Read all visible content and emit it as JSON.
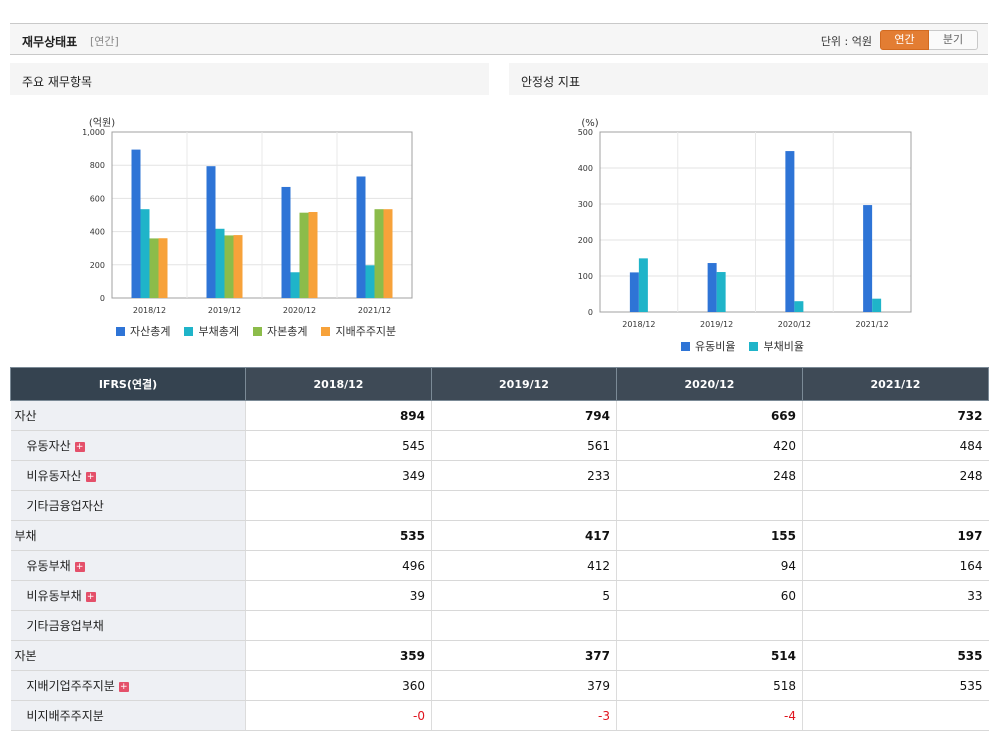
{
  "header": {
    "title": "재무상태표",
    "period": "[연간]",
    "unit_label": "단위 : 억원",
    "toggle": [
      "연간",
      "분기"
    ]
  },
  "left_panel": {
    "title": "주요 재무항목",
    "chart_data": {
      "type": "bar",
      "unit_label": "(억원)",
      "categories": [
        "2018/12",
        "2019/12",
        "2020/12",
        "2021/12"
      ],
      "ylim": [
        0,
        1000
      ],
      "yticks": [
        "0",
        "200",
        "400",
        "600",
        "800",
        "1,000"
      ],
      "ytick_values": [
        0,
        200,
        400,
        600,
        800,
        1000
      ],
      "series": [
        {
          "name": "자산총계",
          "color": "#2e74d6",
          "values": [
            894,
            794,
            669,
            732
          ]
        },
        {
          "name": "부채총계",
          "color": "#1fb4c9",
          "values": [
            535,
            417,
            155,
            197
          ]
        },
        {
          "name": "자본총계",
          "color": "#8cbc4a",
          "values": [
            359,
            377,
            514,
            535
          ]
        },
        {
          "name": "지배주주지분",
          "color": "#f7a23a",
          "values": [
            360,
            379,
            518,
            535
          ]
        }
      ]
    }
  },
  "right_panel": {
    "title": "안정성 지표",
    "chart_data": {
      "type": "bar",
      "unit_label": "(%)",
      "categories": [
        "2018/12",
        "2019/12",
        "2020/12",
        "2021/12"
      ],
      "ylim": [
        0,
        500
      ],
      "yticks": [
        "0",
        "100",
        "200",
        "300",
        "400",
        "500"
      ],
      "ytick_values": [
        0,
        100,
        200,
        300,
        400,
        500
      ],
      "series": [
        {
          "name": "유동비율",
          "color": "#2e74d6",
          "values": [
            110,
            136,
            447,
            297
          ]
        },
        {
          "name": "부채비율",
          "color": "#1fb4c9",
          "values": [
            149,
            111,
            30,
            37
          ]
        }
      ]
    }
  },
  "table": {
    "headers": [
      "IFRS(연결)",
      "2018/12",
      "2019/12",
      "2020/12",
      "2021/12"
    ],
    "rows": [
      {
        "label": "자산",
        "type": "bold",
        "expand": false,
        "values": [
          "894",
          "794",
          "669",
          "732"
        ]
      },
      {
        "label": "유동자산",
        "type": "sub",
        "expand": true,
        "values": [
          "545",
          "561",
          "420",
          "484"
        ]
      },
      {
        "label": "비유동자산",
        "type": "sub",
        "expand": true,
        "values": [
          "349",
          "233",
          "248",
          "248"
        ]
      },
      {
        "label": "기타금융업자산",
        "type": "sub",
        "expand": false,
        "values": [
          "",
          "",
          "",
          ""
        ]
      },
      {
        "label": "부채",
        "type": "bold",
        "expand": false,
        "values": [
          "535",
          "417",
          "155",
          "197"
        ]
      },
      {
        "label": "유동부채",
        "type": "sub",
        "expand": true,
        "values": [
          "496",
          "412",
          "94",
          "164"
        ]
      },
      {
        "label": "비유동부채",
        "type": "sub",
        "expand": true,
        "values": [
          "39",
          "5",
          "60",
          "33"
        ]
      },
      {
        "label": "기타금융업부채",
        "type": "sub",
        "expand": false,
        "values": [
          "",
          "",
          "",
          ""
        ]
      },
      {
        "label": "자본",
        "type": "bold",
        "expand": false,
        "values": [
          "359",
          "377",
          "514",
          "535"
        ]
      },
      {
        "label": "지배기업주주지분",
        "type": "sub",
        "expand": true,
        "values": [
          "360",
          "379",
          "518",
          "535"
        ]
      },
      {
        "label": "비지배주주지분",
        "type": "sub",
        "expand": false,
        "values": [
          "-0",
          "-3",
          "-4",
          ""
        ]
      }
    ]
  }
}
